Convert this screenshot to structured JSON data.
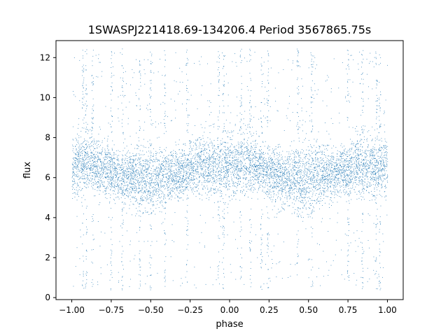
{
  "chart_data": {
    "type": "scatter",
    "title": "1SWASPJ221418.69-134206.4 Period 3567865.75s",
    "xlabel": "phase",
    "ylabel": "flux",
    "xlim": [
      -1.1,
      1.1
    ],
    "ylim": [
      -0.1,
      12.85
    ],
    "xticks": [
      -1.0,
      -0.75,
      -0.5,
      -0.25,
      0.0,
      0.25,
      0.5,
      0.75,
      1.0
    ],
    "xtick_labels": [
      "−1.00",
      "−0.75",
      "−0.50",
      "−0.25",
      "0.00",
      "0.25",
      "0.50",
      "0.75",
      "1.00"
    ],
    "yticks": [
      0,
      2,
      4,
      6,
      8,
      10,
      12
    ],
    "ytick_labels": [
      "0",
      "2",
      "4",
      "6",
      "8",
      "10",
      "12"
    ],
    "grid": false,
    "marker_color": "#1f77b4",
    "band_profile": {
      "phase": [
        0.0,
        0.05,
        0.1,
        0.15,
        0.2,
        0.25,
        0.3,
        0.35,
        0.4,
        0.45,
        0.5,
        0.55,
        0.6,
        0.65,
        0.7,
        0.75,
        0.8,
        0.85,
        0.9,
        0.95,
        1.0
      ],
      "flux_center": [
        6.6,
        6.8,
        6.8,
        6.7,
        6.5,
        6.3,
        6.1,
        6.0,
        6.0,
        6.0,
        6.0,
        6.1,
        6.2,
        6.2,
        6.3,
        6.4,
        6.6,
        6.6,
        6.5,
        6.5,
        6.6
      ],
      "flux_low": [
        4.8,
        5.0,
        5.2,
        5.1,
        5.0,
        4.8,
        4.6,
        4.5,
        4.5,
        4.4,
        4.4,
        4.6,
        4.8,
        4.9,
        5.0,
        5.0,
        5.1,
        5.0,
        5.0,
        4.9,
        4.8
      ],
      "flux_high": [
        8.3,
        8.4,
        8.4,
        8.3,
        8.0,
        7.8,
        7.6,
        7.8,
        8.0,
        8.1,
        8.2,
        8.0,
        7.9,
        7.8,
        7.8,
        8.0,
        8.3,
        8.5,
        8.4,
        8.3,
        8.3
      ]
    },
    "outlier_phases": [
      -0.93,
      -0.91,
      -0.87,
      -0.75,
      -0.68,
      -0.57,
      -0.5,
      -0.41,
      -0.27,
      -0.07,
      -0.04,
      0.07,
      0.13,
      0.2,
      0.24,
      0.43,
      0.52,
      0.75,
      0.84,
      0.93,
      0.95
    ]
  }
}
